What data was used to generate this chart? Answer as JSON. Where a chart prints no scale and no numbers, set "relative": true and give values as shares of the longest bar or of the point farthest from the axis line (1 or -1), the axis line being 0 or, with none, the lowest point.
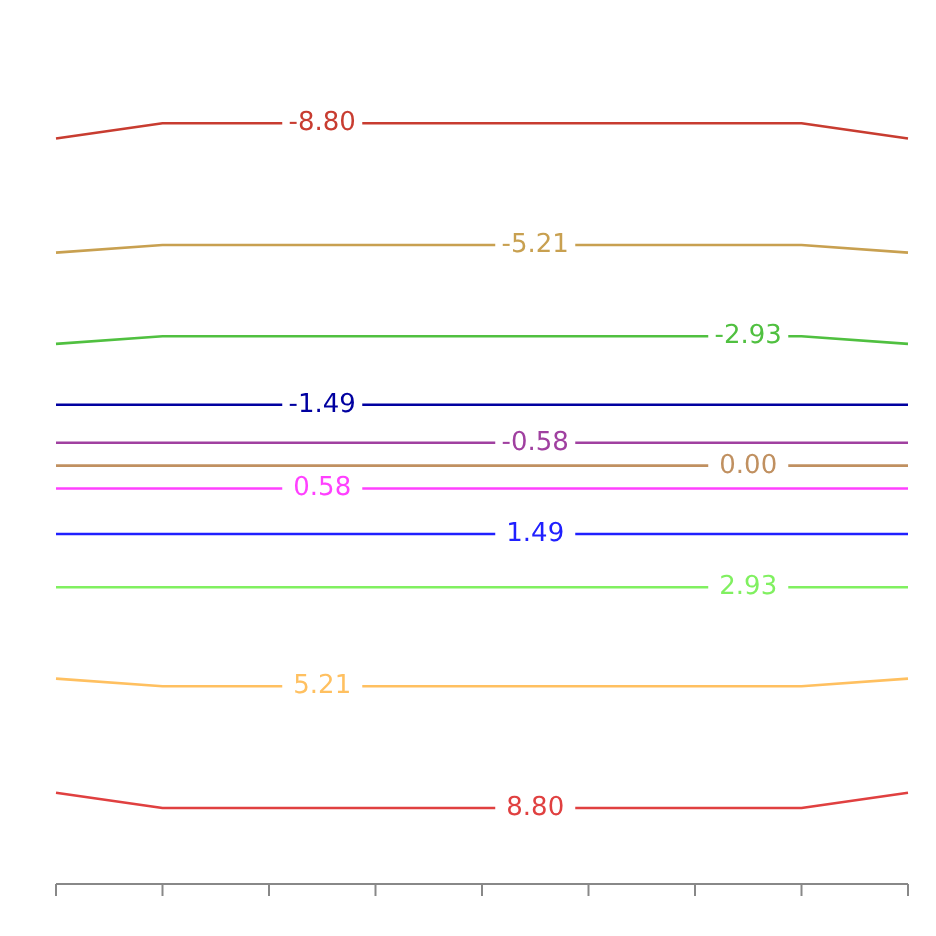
{
  "chart_data": {
    "type": "line",
    "relative": true,
    "marker": "none",
    "categories": [
      null,
      null,
      null,
      null,
      null,
      null,
      null,
      null,
      null
    ],
    "series": [
      {
        "name": "-8.80",
        "color": "#c83c30",
        "values": [
          0.98,
          1,
          1,
          1,
          1,
          1,
          1,
          1,
          0.98
        ]
      },
      {
        "name": "-5.21",
        "color": "#c8a050",
        "values": [
          0.83,
          0.84,
          0.84,
          0.84,
          0.84,
          0.84,
          0.84,
          0.84,
          0.83
        ]
      },
      {
        "name": "-2.93",
        "color": "#50c040",
        "values": [
          0.71,
          0.72,
          0.72,
          0.72,
          0.72,
          0.72,
          0.72,
          0.72,
          0.71
        ]
      },
      {
        "name": "-1.49",
        "color": "#0000a0",
        "values": [
          0.63,
          0.63,
          0.63,
          0.63,
          0.63,
          0.63,
          0.63,
          0.63,
          0.63
        ]
      },
      {
        "name": "-0.58",
        "color": "#a040a0",
        "values": [
          0.58,
          0.58,
          0.58,
          0.58,
          0.58,
          0.58,
          0.58,
          0.58,
          0.58
        ]
      },
      {
        "name": "0.00",
        "color": "#c09060",
        "values": [
          0.55,
          0.55,
          0.55,
          0.55,
          0.55,
          0.55,
          0.55,
          0.55,
          0.55
        ]
      },
      {
        "name": "0.58",
        "color": "#ff40ff",
        "values": [
          0.52,
          0.52,
          0.52,
          0.52,
          0.52,
          0.52,
          0.52,
          0.52,
          0.52
        ]
      },
      {
        "name": "1.49",
        "color": "#2020ff",
        "values": [
          0.46,
          0.46,
          0.46,
          0.46,
          0.46,
          0.46,
          0.46,
          0.46,
          0.46
        ]
      },
      {
        "name": "2.93",
        "color": "#80f060",
        "values": [
          0.39,
          0.39,
          0.39,
          0.39,
          0.39,
          0.39,
          0.39,
          0.39,
          0.39
        ]
      },
      {
        "name": "5.21",
        "color": "#ffc060",
        "values": [
          0.27,
          0.26,
          0.26,
          0.26,
          0.26,
          0.26,
          0.26,
          0.26,
          0.27
        ]
      },
      {
        "name": "8.80",
        "color": "#e04040",
        "values": [
          0.12,
          0.1,
          0.1,
          0.1,
          0.1,
          0.1,
          0.1,
          0.1,
          0.12
        ]
      }
    ]
  }
}
